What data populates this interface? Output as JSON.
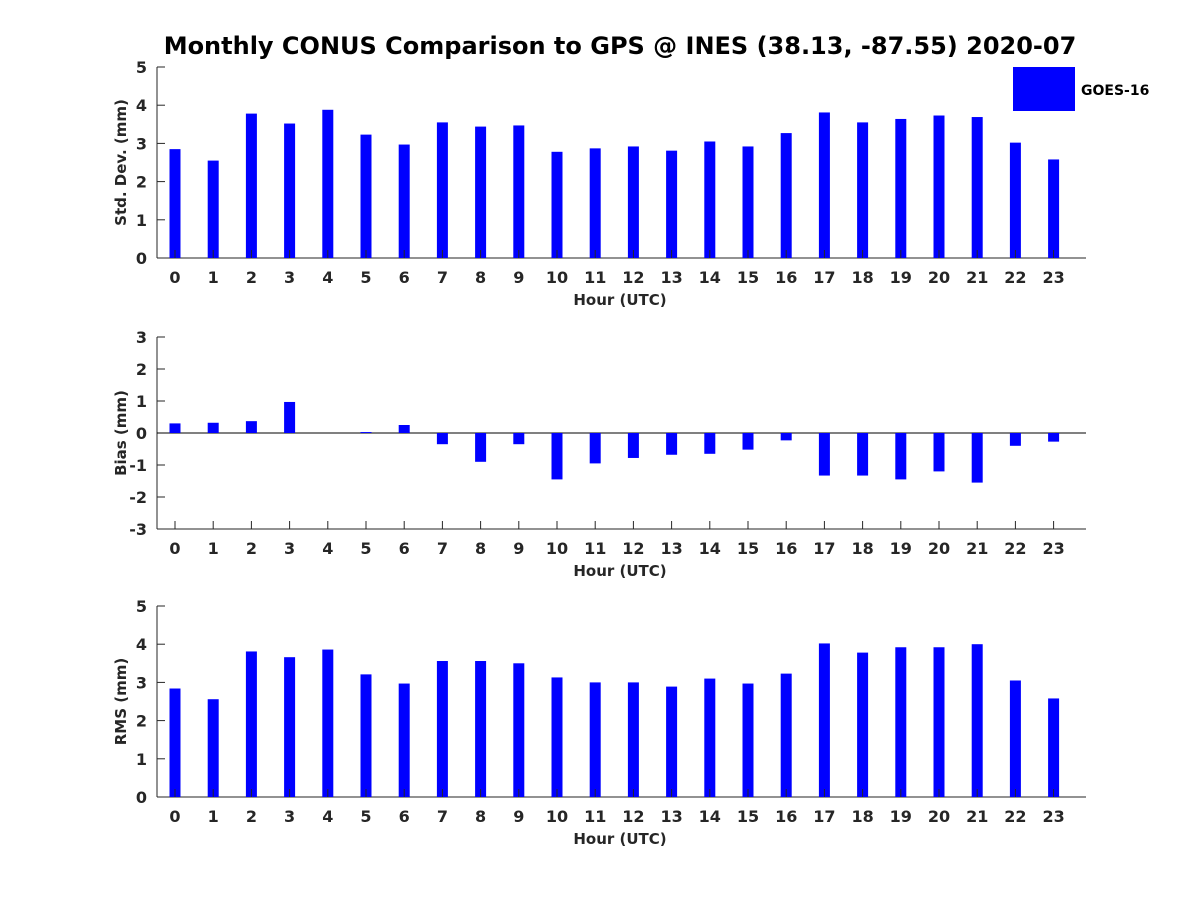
{
  "figure_title": "Monthly CONUS Comparison to GPS @ INES (38.13, -87.55) 2020-07",
  "legend": {
    "label": "GOES-16",
    "color": "#0000ff"
  },
  "chart_data": [
    {
      "type": "bar",
      "name": "std-dev",
      "title": "Monthly CONUS Comparison to GPS @ INES (38.13, -87.55) 2020-07",
      "xlabel": "Hour (UTC)",
      "ylabel": "Std. Dev. (mm)",
      "ylim": [
        0,
        5
      ],
      "yticks": [
        0,
        1,
        2,
        3,
        4,
        5
      ],
      "categories": [
        "0",
        "1",
        "2",
        "3",
        "4",
        "5",
        "6",
        "7",
        "8",
        "9",
        "10",
        "11",
        "12",
        "13",
        "14",
        "15",
        "16",
        "17",
        "18",
        "19",
        "20",
        "21",
        "22",
        "23"
      ],
      "series": [
        {
          "name": "GOES-16",
          "color": "#0000ff",
          "values": [
            2.85,
            2.55,
            3.78,
            3.52,
            3.88,
            3.23,
            2.97,
            3.55,
            3.44,
            3.47,
            2.78,
            2.87,
            2.92,
            2.81,
            3.05,
            2.92,
            3.27,
            3.81,
            3.55,
            3.64,
            3.73,
            3.69,
            3.02,
            2.58
          ]
        }
      ]
    },
    {
      "type": "bar",
      "name": "bias",
      "title": "",
      "xlabel": "Hour (UTC)",
      "ylabel": "Bias (mm)",
      "ylim": [
        -3,
        3
      ],
      "yticks": [
        -3,
        -2,
        -1,
        0,
        1,
        2,
        3
      ],
      "zero_line": true,
      "categories": [
        "0",
        "1",
        "2",
        "3",
        "4",
        "5",
        "6",
        "7",
        "8",
        "9",
        "10",
        "11",
        "12",
        "13",
        "14",
        "15",
        "16",
        "17",
        "18",
        "19",
        "20",
        "21",
        "22",
        "23"
      ],
      "series": [
        {
          "name": "GOES-16",
          "color": "#0000ff",
          "values": [
            0.3,
            0.32,
            0.37,
            0.97,
            0.0,
            0.03,
            0.25,
            -0.35,
            -0.9,
            -0.35,
            -1.45,
            -0.95,
            -0.78,
            -0.68,
            -0.65,
            -0.52,
            -0.23,
            -1.33,
            -1.33,
            -1.45,
            -1.2,
            -1.55,
            -0.4,
            -0.27
          ]
        }
      ]
    },
    {
      "type": "bar",
      "name": "rms",
      "title": "",
      "xlabel": "Hour (UTC)",
      "ylabel": "RMS (mm)",
      "ylim": [
        0,
        5
      ],
      "yticks": [
        0,
        1,
        2,
        3,
        4,
        5
      ],
      "categories": [
        "0",
        "1",
        "2",
        "3",
        "4",
        "5",
        "6",
        "7",
        "8",
        "9",
        "10",
        "11",
        "12",
        "13",
        "14",
        "15",
        "16",
        "17",
        "18",
        "19",
        "20",
        "21",
        "22",
        "23"
      ],
      "series": [
        {
          "name": "GOES-16",
          "color": "#0000ff",
          "values": [
            2.84,
            2.56,
            3.81,
            3.66,
            3.86,
            3.21,
            2.97,
            3.56,
            3.56,
            3.5,
            3.13,
            3.0,
            3.0,
            2.89,
            3.1,
            2.97,
            3.23,
            4.02,
            3.78,
            3.92,
            3.92,
            4.0,
            3.05,
            2.58
          ]
        }
      ]
    }
  ]
}
